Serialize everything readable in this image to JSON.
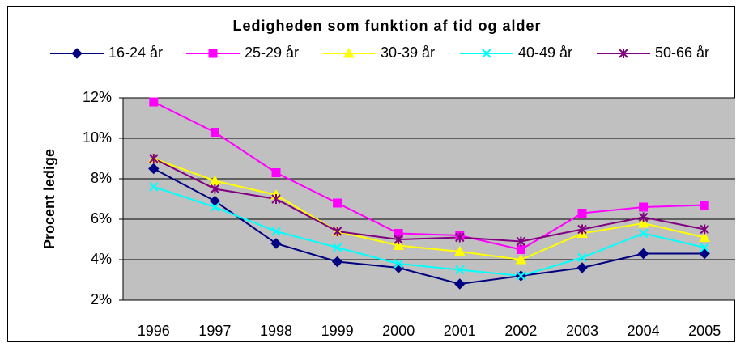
{
  "chart_data": {
    "type": "line",
    "title": "Ledigheden som funktion af tid og alder",
    "y_label": "Procent ledige",
    "categories": [
      "1996",
      "1997",
      "1998",
      "1999",
      "2000",
      "2001",
      "2002",
      "2003",
      "2004",
      "2005"
    ],
    "series": [
      {
        "name": "16-24 år",
        "color": "#000080",
        "marker": "diamond",
        "values": [
          8.5,
          6.9,
          4.8,
          3.9,
          3.6,
          2.8,
          3.2,
          3.6,
          4.3,
          4.3
        ]
      },
      {
        "name": "25-29 år",
        "color": "#ff00ff",
        "marker": "square",
        "values": [
          11.8,
          10.3,
          8.3,
          6.8,
          5.3,
          5.2,
          4.5,
          6.3,
          6.6,
          6.7
        ]
      },
      {
        "name": "30-39 år",
        "color": "#ffff00",
        "marker": "triangle",
        "values": [
          9.0,
          7.9,
          7.2,
          5.4,
          4.7,
          4.4,
          4.0,
          5.3,
          5.8,
          5.1
        ]
      },
      {
        "name": "40-49 år",
        "color": "#00ffff",
        "marker": "x",
        "values": [
          7.6,
          6.6,
          5.4,
          4.6,
          3.8,
          3.5,
          3.2,
          4.1,
          5.3,
          4.6
        ]
      },
      {
        "name": "50-66 år",
        "color": "#800080",
        "marker": "star",
        "values": [
          9.0,
          7.5,
          7.0,
          5.4,
          5.0,
          5.1,
          4.9,
          5.5,
          6.1,
          5.5
        ]
      }
    ],
    "ylim": [
      2,
      12
    ],
    "yticks": [
      {
        "value": 2,
        "label": "2%"
      },
      {
        "value": 4,
        "label": "4%"
      },
      {
        "value": 6,
        "label": "6%"
      },
      {
        "value": 8,
        "label": "8%"
      },
      {
        "value": 10,
        "label": "10%"
      },
      {
        "value": 12,
        "label": "12%"
      }
    ],
    "grid": true,
    "legend": "top"
  }
}
